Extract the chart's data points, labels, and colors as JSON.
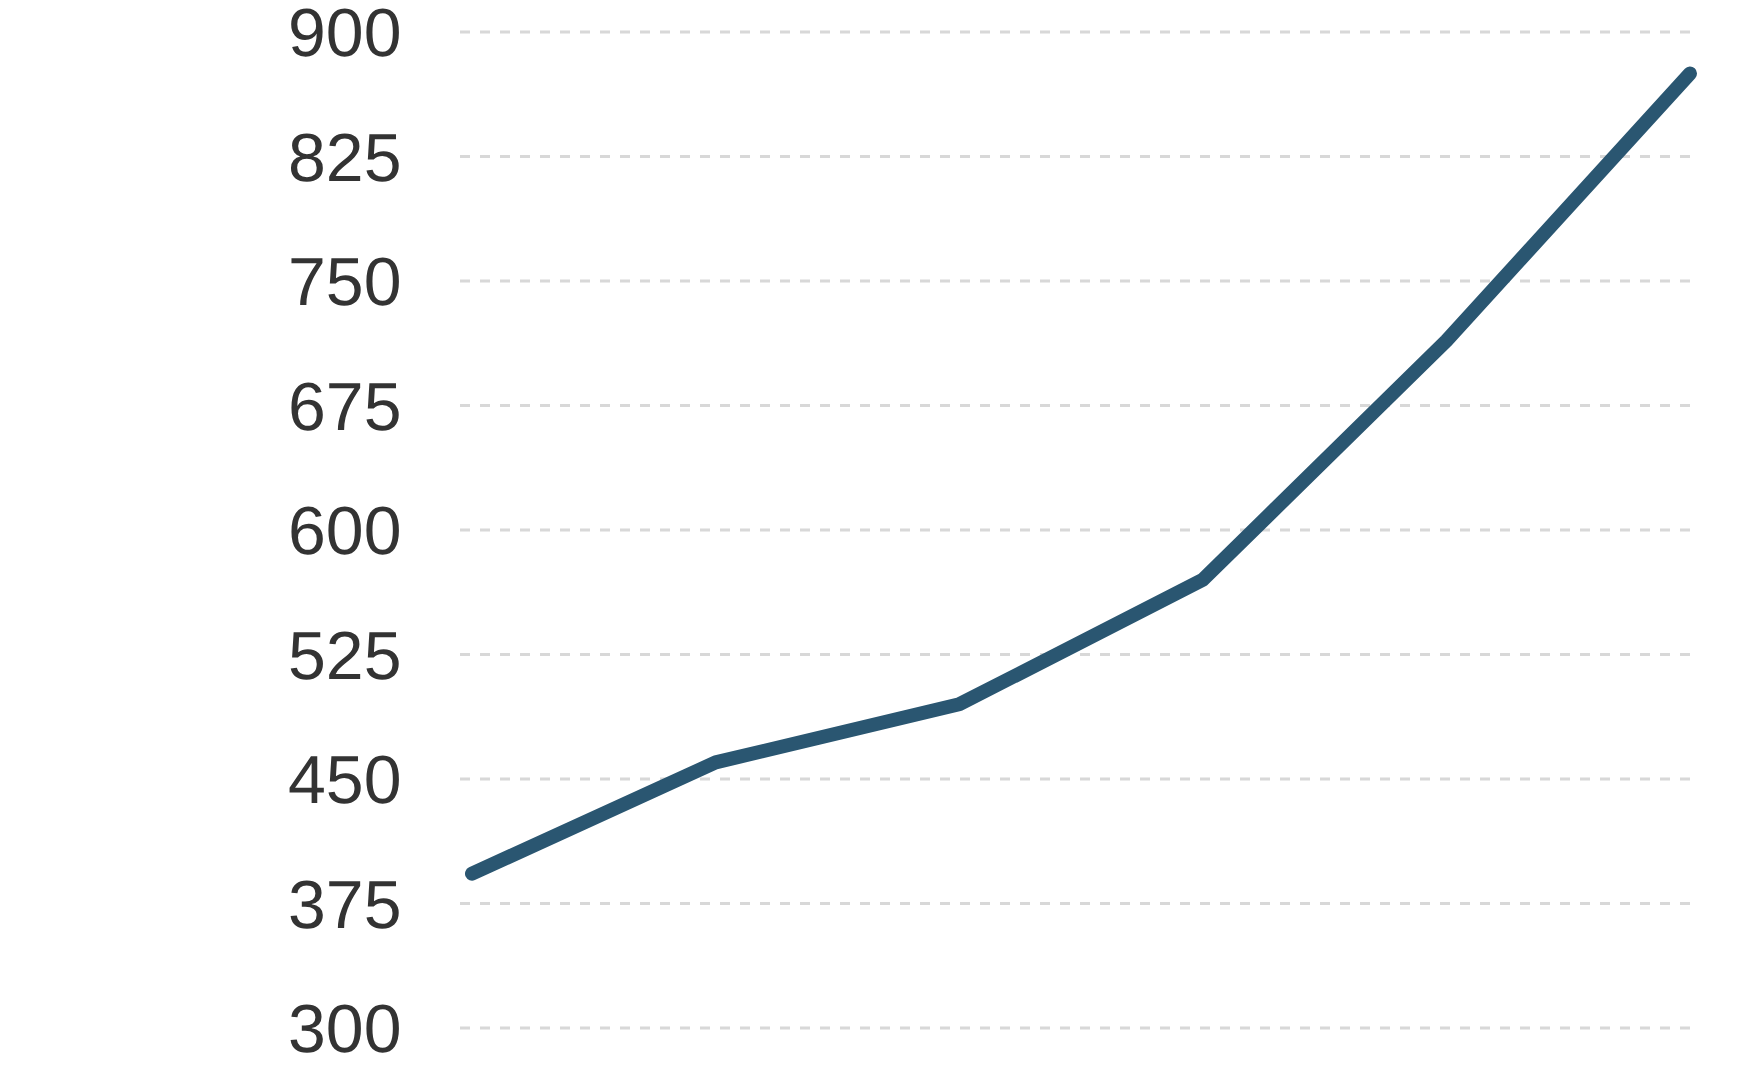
{
  "chart_data": {
    "type": "line",
    "categories": [
      null,
      null,
      null,
      null,
      null,
      null
    ],
    "series": [
      {
        "color": "#2a5671",
        "values": [
          393,
          460,
          495,
          570,
          714,
          875
        ]
      }
    ],
    "ylim": [
      300,
      900
    ],
    "yticks": [
      300,
      375,
      450,
      525,
      600,
      675,
      750,
      825,
      900
    ],
    "grid": "y",
    "tick_labels": "y",
    "marker": "none",
    "line_style": "solid"
  }
}
